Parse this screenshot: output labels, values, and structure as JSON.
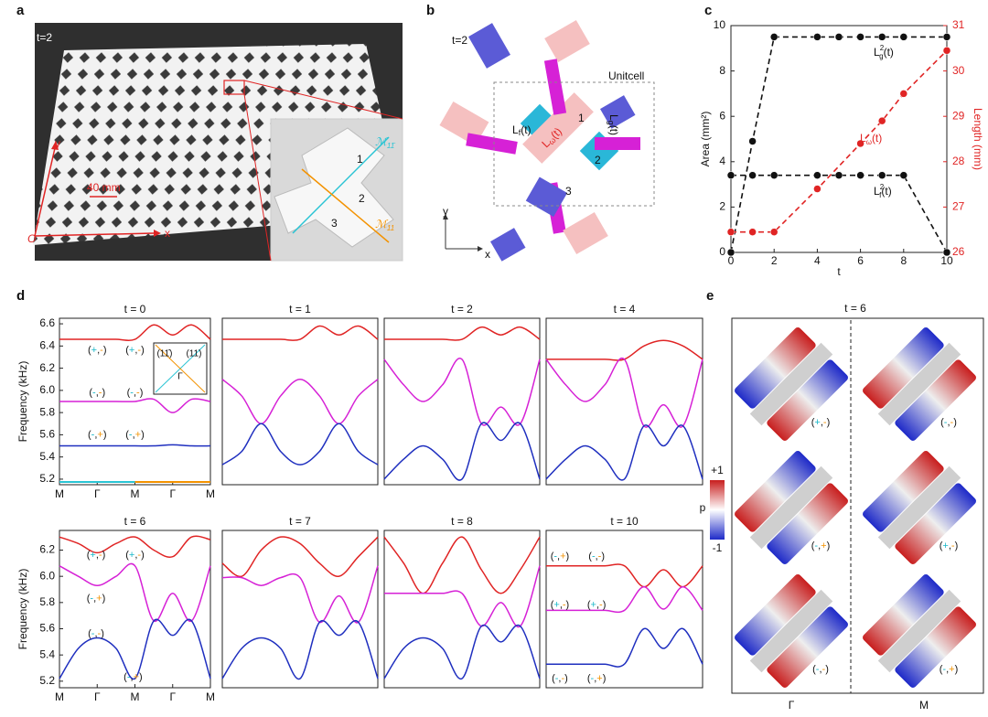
{
  "figure": {
    "panel_labels": [
      "a",
      "b",
      "c",
      "d",
      "e"
    ],
    "sign_colors": [
      "#19b8c9",
      "#f39200"
    ],
    "a": {
      "t_label": "t=2",
      "scale": "40 mm",
      "x": "x",
      "y": "y",
      "origin": "O",
      "parts": [
        "1",
        "2",
        "3"
      ],
      "mirror": [
        {
          "base": "ℳ",
          "sub": "11̄"
        },
        {
          "base": "ℳ",
          "sub": "11"
        }
      ]
    },
    "b": {
      "t_label": "t=2",
      "unitcell": "Unitcell",
      "parts": [
        "1",
        "2",
        "3"
      ],
      "lengths": [
        {
          "base": "L",
          "sub": "f",
          "tail": "(t)"
        },
        {
          "base": "L",
          "sub": "ω",
          "tail": "(t)"
        },
        {
          "base": "L",
          "sub": "g",
          "tail": "(t)"
        }
      ],
      "x": "x",
      "y": "y"
    },
    "e": {
      "title": "t = 6",
      "colorbar_label": "p",
      "colorbar_ticks": [
        {
          "value": 1,
          "label": "+1"
        },
        -1
      ],
      "columns": [
        "Γ",
        "M"
      ],
      "parity": [
        [
          "(",
          "+",
          ",",
          "-",
          ")"
        ],
        [
          "(",
          "-",
          ",",
          "-",
          ")"
        ],
        [
          "(",
          "-",
          ",",
          "+",
          ")"
        ],
        [
          "(",
          "+",
          ",",
          "-",
          ")"
        ],
        [
          "(",
          "-",
          ",",
          "-",
          ")"
        ],
        [
          "(",
          "-",
          ",",
          "+",
          ")"
        ]
      ]
    }
  },
  "chart_data": [
    {
      "type": "line",
      "x_label": "t",
      "y_label": "Area (mm²)",
      "y2_label": "Length (mm)",
      "y2_color": "#e02424",
      "xlim": [
        0,
        10
      ],
      "xticks": [
        0,
        2,
        4,
        6,
        8,
        10
      ],
      "ylim": [
        0,
        10
      ],
      "yticks": [
        0,
        2,
        4,
        6,
        8,
        10
      ],
      "y2lim": [
        26,
        31
      ],
      "y2ticks": [
        26,
        27,
        28,
        29,
        30,
        31
      ],
      "series": [
        {
          "label": {
            "base": "L",
            "sup": "2",
            "sub": "g",
            "tail": "(t)"
          },
          "color": "#111111",
          "x": [
            0,
            1,
            2,
            4,
            5,
            6,
            7,
            8,
            10
          ],
          "values": [
            0,
            4.9,
            9.5,
            9.5,
            9.5,
            9.5,
            9.5,
            9.5,
            9.5
          ]
        },
        {
          "label": {
            "base": "L",
            "sup": "2",
            "sub": "f",
            "tail": "(t)"
          },
          "color": "#111111",
          "x": [
            0,
            1,
            2,
            4,
            5,
            6,
            7,
            8,
            10
          ],
          "values": [
            3.4,
            3.4,
            3.4,
            3.4,
            3.4,
            3.4,
            3.4,
            3.4,
            0
          ]
        },
        {
          "label": {
            "base": "L",
            "sub": "ω",
            "tail": "(t)"
          },
          "color": "#e02424",
          "axis": "y2",
          "x": [
            0,
            1,
            2,
            4,
            6,
            7,
            8,
            10
          ],
          "values": [
            26.45,
            26.45,
            26.45,
            27.4,
            28.4,
            28.9,
            29.5,
            30.45
          ]
        }
      ]
    },
    {
      "type": "band",
      "title": "t = 0",
      "y_label": "Frequency (kHz)",
      "xlim": [
        0,
        4
      ],
      "xticks": [
        {
          "value": 0,
          "label": "M"
        },
        {
          "value": 1,
          "label": "Γ"
        },
        {
          "value": 2,
          "label": "M"
        },
        {
          "value": 3,
          "label": "Γ"
        },
        {
          "value": 4,
          "label": "M"
        }
      ],
      "ylim": [
        5.15,
        6.65
      ],
      "yticks": [
        5.2,
        5.4,
        5.6,
        5.8,
        {
          "value": 6,
          "label": "6.0"
        },
        6.2,
        6.4,
        6.6
      ],
      "x": [
        0,
        0.5,
        1,
        1.5,
        2,
        2.5,
        3,
        3.5,
        4
      ],
      "series": [
        {
          "color": "#e02424",
          "values": [
            6.46,
            6.46,
            6.46,
            6.46,
            6.46,
            6.59,
            6.5,
            6.59,
            6.46
          ]
        },
        {
          "color": "#d621d6",
          "values": [
            5.9,
            5.9,
            5.9,
            5.9,
            5.9,
            5.92,
            5.8,
            5.92,
            5.9
          ]
        },
        {
          "color": "#1f2fbf",
          "values": [
            5.5,
            5.5,
            5.5,
            5.5,
            5.5,
            5.5,
            5.51,
            5.5,
            5.5
          ]
        }
      ],
      "annotations": [
        [
          "(",
          "+",
          ",",
          "-",
          ")"
        ],
        [
          "(",
          "+",
          ",",
          "-",
          ")"
        ],
        [
          "(",
          "-",
          ",",
          "-",
          ")"
        ],
        [
          "(",
          "-",
          ",",
          "-",
          ")"
        ],
        [
          "(",
          "-",
          ",",
          "+",
          ")"
        ],
        [
          "(",
          "-",
          ",",
          "+",
          ")"
        ]
      ],
      "inset_labels": [
        "(11̄)",
        "(11)",
        "Γ"
      ]
    },
    {
      "type": "band",
      "title": "t = 1",
      "xlim": [
        0,
        4
      ],
      "ylim": [
        5.15,
        6.65
      ],
      "x": [
        0,
        0.5,
        1,
        1.5,
        2,
        2.5,
        3,
        3.5,
        4
      ],
      "series": [
        {
          "color": "#e02424",
          "values": [
            6.46,
            6.46,
            6.46,
            6.46,
            6.46,
            6.58,
            6.5,
            6.58,
            6.46
          ]
        },
        {
          "color": "#d621d6",
          "values": [
            6.1,
            5.95,
            5.7,
            5.95,
            6.1,
            5.95,
            5.7,
            5.95,
            6.1
          ]
        },
        {
          "color": "#1f2fbf",
          "values": [
            5.33,
            5.45,
            5.7,
            5.45,
            5.33,
            5.45,
            5.7,
            5.45,
            5.33
          ]
        }
      ]
    },
    {
      "type": "band",
      "title": "t = 2",
      "xlim": [
        0,
        4
      ],
      "ylim": [
        5.15,
        6.65
      ],
      "x": [
        0,
        0.5,
        1,
        1.5,
        2,
        2.5,
        3,
        3.5,
        4
      ],
      "series": [
        {
          "color": "#e02424",
          "values": [
            6.46,
            6.46,
            6.46,
            6.46,
            6.46,
            6.57,
            6.5,
            6.57,
            6.46
          ]
        },
        {
          "color": "#d621d6",
          "values": [
            6.28,
            6.05,
            5.9,
            6.05,
            6.28,
            5.7,
            5.85,
            5.7,
            6.28
          ]
        },
        {
          "color": "#1f2fbf",
          "values": [
            5.2,
            5.38,
            5.5,
            5.38,
            5.2,
            5.7,
            5.55,
            5.7,
            5.2
          ]
        }
      ]
    },
    {
      "type": "band",
      "title": "t = 4",
      "xlim": [
        0,
        4
      ],
      "ylim": [
        5.15,
        6.65
      ],
      "x": [
        0,
        0.5,
        1,
        1.5,
        2,
        2.5,
        3,
        3.5,
        4
      ],
      "series": [
        {
          "color": "#e02424",
          "values": [
            6.28,
            6.28,
            6.28,
            6.28,
            6.28,
            6.4,
            6.45,
            6.4,
            6.28
          ]
        },
        {
          "color": "#d621d6",
          "values": [
            6.28,
            6.05,
            5.9,
            6.05,
            6.28,
            5.68,
            5.87,
            5.68,
            6.28
          ]
        },
        {
          "color": "#1f2fbf",
          "values": [
            5.2,
            5.38,
            5.5,
            5.38,
            5.2,
            5.68,
            5.5,
            5.68,
            5.2
          ]
        }
      ]
    },
    {
      "type": "band",
      "title": "t = 6",
      "y_label": "Frequency (kHz)",
      "xlim": [
        0,
        4
      ],
      "xticks": [
        {
          "value": 0,
          "label": "M"
        },
        {
          "value": 1,
          "label": "Γ"
        },
        {
          "value": 2,
          "label": "M"
        },
        {
          "value": 3,
          "label": "Γ"
        },
        {
          "value": 4,
          "label": "M"
        }
      ],
      "ylim": [
        5.15,
        6.35
      ],
      "yticks": [
        5.2,
        5.4,
        5.6,
        5.8,
        {
          "value": 6,
          "label": "6.0"
        },
        6.2
      ],
      "x": [
        0,
        0.5,
        1,
        1.5,
        2,
        2.5,
        3,
        3.5,
        4
      ],
      "series": [
        {
          "color": "#e02424",
          "values": [
            6.3,
            6.25,
            6.18,
            6.25,
            6.3,
            6.2,
            6.15,
            6.3,
            6.28
          ]
        },
        {
          "color": "#d621d6",
          "values": [
            6.08,
            6.0,
            5.93,
            6.0,
            6.08,
            5.66,
            5.87,
            5.66,
            6.08
          ]
        },
        {
          "color": "#1f2fbf",
          "values": [
            5.22,
            5.45,
            5.53,
            5.45,
            5.22,
            5.66,
            5.55,
            5.66,
            5.22
          ]
        }
      ],
      "annotations": [
        [
          "(",
          "+",
          ",",
          "-",
          ")"
        ],
        [
          "(",
          "+",
          ",",
          "-",
          ")"
        ],
        [
          "(",
          "-",
          ",",
          "+",
          ")"
        ],
        [
          "(",
          "-",
          ",",
          "-",
          ")"
        ],
        [
          "(",
          "-",
          ",",
          "+",
          ")"
        ]
      ]
    },
    {
      "type": "band",
      "title": "t = 7",
      "xlim": [
        0,
        4
      ],
      "ylim": [
        5.15,
        6.35
      ],
      "x": [
        0,
        0.5,
        1,
        1.5,
        2,
        2.5,
        3,
        3.5,
        4
      ],
      "series": [
        {
          "color": "#e02424",
          "values": [
            6.1,
            6.0,
            6.2,
            6.3,
            6.25,
            6.1,
            6.0,
            6.15,
            6.3
          ]
        },
        {
          "color": "#d621d6",
          "values": [
            5.99,
            5.99,
            5.93,
            5.99,
            5.99,
            5.65,
            5.85,
            5.65,
            6.08
          ]
        },
        {
          "color": "#1f2fbf",
          "values": [
            5.22,
            5.45,
            5.53,
            5.45,
            5.22,
            5.65,
            5.55,
            5.65,
            5.22
          ]
        }
      ]
    },
    {
      "type": "band",
      "title": "t = 8",
      "xlim": [
        0,
        4
      ],
      "ylim": [
        5.15,
        6.35
      ],
      "x": [
        0,
        0.5,
        1,
        1.5,
        2,
        2.5,
        3,
        3.5,
        4
      ],
      "series": [
        {
          "color": "#e02424",
          "values": [
            6.3,
            6.1,
            5.87,
            6.1,
            6.3,
            6.05,
            5.87,
            6.05,
            6.3
          ]
        },
        {
          "color": "#d621d6",
          "values": [
            5.87,
            5.87,
            5.87,
            5.87,
            5.87,
            5.62,
            5.8,
            5.62,
            6.08
          ]
        },
        {
          "color": "#1f2fbf",
          "values": [
            5.22,
            5.45,
            5.53,
            5.45,
            5.22,
            5.62,
            5.5,
            5.62,
            5.22
          ]
        }
      ]
    },
    {
      "type": "band",
      "title": "t = 10",
      "xlim": [
        0,
        4
      ],
      "ylim": [
        5.15,
        6.35
      ],
      "x": [
        0,
        0.5,
        1,
        1.5,
        2,
        2.5,
        3,
        3.5,
        4
      ],
      "series": [
        {
          "color": "#e02424",
          "values": [
            6.08,
            6.08,
            6.08,
            6.08,
            6.08,
            5.92,
            6.05,
            5.92,
            6.08
          ]
        },
        {
          "color": "#d621d6",
          "values": [
            5.74,
            5.74,
            5.74,
            5.74,
            5.74,
            5.92,
            5.75,
            5.92,
            5.74
          ]
        },
        {
          "color": "#1f2fbf",
          "values": [
            5.33,
            5.33,
            5.33,
            5.33,
            5.33,
            5.6,
            5.45,
            5.6,
            5.33
          ]
        }
      ],
      "annotations": [
        [
          "(",
          "-",
          ",",
          "+",
          ")"
        ],
        [
          "(",
          "-",
          ",",
          "-",
          ")"
        ],
        [
          "(",
          "+",
          ",",
          "-",
          ")"
        ],
        [
          "(",
          "+",
          ",",
          "-",
          ")"
        ],
        [
          "(",
          "-",
          ",",
          "-",
          ")"
        ],
        [
          "(",
          "-",
          ",",
          "+",
          ")"
        ]
      ]
    }
  ]
}
